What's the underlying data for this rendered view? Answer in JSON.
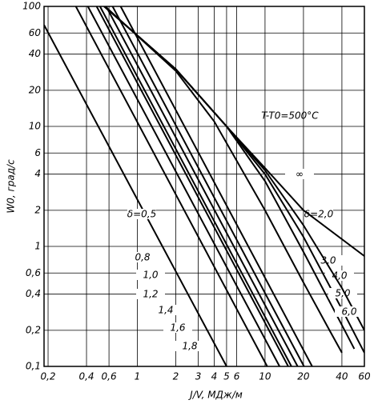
{
  "chart_data": {
    "type": "line",
    "x_label": "J/V, МДж/м",
    "y_label": "W0, град/с",
    "annotation": "T-T0=500°C",
    "log_x": true,
    "log_y": true,
    "grid": true,
    "color": "#000000",
    "xlim": [
      0.186,
      60
    ],
    "ylim": [
      0.1,
      100
    ],
    "xticks": [
      {
        "value": 0.2,
        "label": "0,2"
      },
      {
        "value": 0.4,
        "label": "0,4"
      },
      {
        "value": 0.6,
        "label": "0,6"
      },
      1,
      2,
      3,
      4,
      5,
      6,
      10,
      20,
      40,
      60
    ],
    "yticks": [
      {
        "value": 0.1,
        "label": "0,1"
      },
      {
        "value": 0.2,
        "label": "0,2"
      },
      {
        "value": 0.4,
        "label": "0,4"
      },
      {
        "value": 0.6,
        "label": "0,6"
      },
      1,
      2,
      4,
      6,
      10,
      20,
      40,
      60,
      100
    ],
    "series": [
      {
        "name": "δ=0,5",
        "x": [
          0.186,
          5
        ],
        "values": [
          70,
          0.1
        ]
      },
      {
        "name": "0,8",
        "x": [
          0.33,
          10.4
        ],
        "values": [
          100,
          0.1
        ]
      },
      {
        "name": "1,0",
        "x": [
          0.41,
          13
        ],
        "values": [
          100,
          0.1
        ]
      },
      {
        "name": "1,2",
        "x": [
          0.48,
          15.2
        ],
        "values": [
          100,
          0.1
        ]
      },
      {
        "name": "1,4",
        "x": [
          0.51,
          16.1
        ],
        "values": [
          100,
          0.1
        ]
      },
      {
        "name": "1,6",
        "x": [
          0.57,
          18
        ],
        "values": [
          100,
          0.1
        ]
      },
      {
        "name": "1,8",
        "x": [
          0.64,
          20.2
        ],
        "values": [
          100,
          0.1
        ]
      },
      {
        "name": "δ=2,0",
        "x": [
          0.74,
          23.4
        ],
        "values": [
          100,
          0.1
        ]
      },
      {
        "name": "3,0",
        "x": [
          0.56,
          2,
          4,
          10,
          20,
          32,
          40
        ],
        "values": [
          100,
          29,
          11,
          2,
          0.5,
          0.2,
          0.13
        ]
      },
      {
        "name": "4,0",
        "x": [
          0.55,
          2,
          5,
          10,
          20,
          42,
          50
        ],
        "values": [
          100,
          30,
          10,
          3.5,
          0.9,
          0.2,
          0.14
        ]
      },
      {
        "name": "5,0",
        "x": [
          0.55,
          2,
          5,
          10,
          20,
          40,
          60
        ],
        "values": [
          100,
          30,
          10,
          4,
          1.2,
          0.3,
          0.13
        ]
      },
      {
        "name": "6,0",
        "x": [
          0.55,
          2,
          5,
          10,
          20,
          40,
          60
        ],
        "values": [
          100,
          30,
          10,
          4.3,
          1.5,
          0.45,
          0.2
        ]
      },
      {
        "name": "∞",
        "x": [
          0.55,
          2,
          5,
          10,
          20,
          60
        ],
        "values": [
          100,
          30,
          10,
          4.5,
          2,
          0.83
        ]
      }
    ]
  }
}
